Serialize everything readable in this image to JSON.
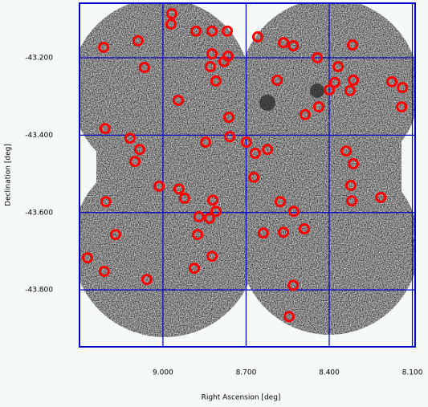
{
  "chart_data": {
    "type": "scatter",
    "xlabel": "Right Ascension [deg]",
    "ylabel": "Declination [deg]",
    "x": [
      8.968,
      8.971,
      8.881,
      8.823,
      8.768,
      9.214,
      9.09,
      8.658,
      8.565,
      8.53,
      8.316,
      8.823,
      8.765,
      8.443,
      8.829,
      8.78,
      9.067,
      8.368,
      8.809,
      8.588,
      8.38,
      8.313,
      8.174,
      8.136,
      8.945,
      8.325,
      8.4,
      8.438,
      8.487,
      8.139,
      8.762,
      9.209,
      9.119,
      9.084,
      9.101,
      8.846,
      8.759,
      8.699,
      8.667,
      8.623,
      8.339,
      8.313,
      8.672,
      9.014,
      8.942,
      8.922,
      8.322,
      8.82,
      8.577,
      8.214,
      8.319,
      9.206,
      8.809,
      8.87,
      8.832,
      8.528,
      9.171,
      8.875,
      8.638,
      8.565,
      8.49,
      9.272,
      8.823,
      9.212,
      8.887,
      9.058,
      8.53,
      8.545
    ],
    "values": [
      -43.086,
      -43.113,
      -43.131,
      -43.131,
      -43.131,
      -43.173,
      -43.156,
      -43.146,
      -43.161,
      -43.169,
      -43.167,
      -43.19,
      -43.196,
      -43.2,
      -43.223,
      -43.21,
      -43.225,
      -43.223,
      -43.26,
      -43.258,
      -43.264,
      -43.258,
      -43.262,
      -43.277,
      -43.31,
      -43.285,
      -43.283,
      -43.327,
      -43.347,
      -43.327,
      -43.354,
      -43.383,
      -43.408,
      -43.437,
      -43.468,
      -43.418,
      -43.404,
      -43.418,
      -43.447,
      -43.437,
      -43.441,
      -43.474,
      -43.509,
      -43.532,
      -43.539,
      -43.563,
      -43.53,
      -43.568,
      -43.572,
      -43.561,
      -43.57,
      -43.572,
      -43.597,
      -43.611,
      -43.615,
      -43.597,
      -43.657,
      -43.657,
      -43.653,
      -43.651,
      -43.642,
      -43.717,
      -43.713,
      -43.752,
      -43.744,
      -43.773,
      -43.788,
      -43.869
    ],
    "color": "#ff0000",
    "grid_color": "#0000c8",
    "grid": true,
    "xlim": [
      9.301,
      8.09
    ],
    "ylim": [
      -43.947,
      -43.059
    ],
    "xticks": [
      {
        "value": 9.0,
        "label": "9.000"
      },
      {
        "value": 8.7,
        "label": "8.700"
      },
      {
        "value": 8.4,
        "label": "8.400"
      },
      {
        "value": 8.1,
        "label": "8.100"
      }
    ],
    "yticks": [
      {
        "value": -43.2,
        "label": "-43.200"
      },
      {
        "value": -43.4,
        "label": "-43.400"
      },
      {
        "value": -43.6,
        "label": "-43.600"
      },
      {
        "value": -43.8,
        "label": "-43.800"
      }
    ]
  }
}
